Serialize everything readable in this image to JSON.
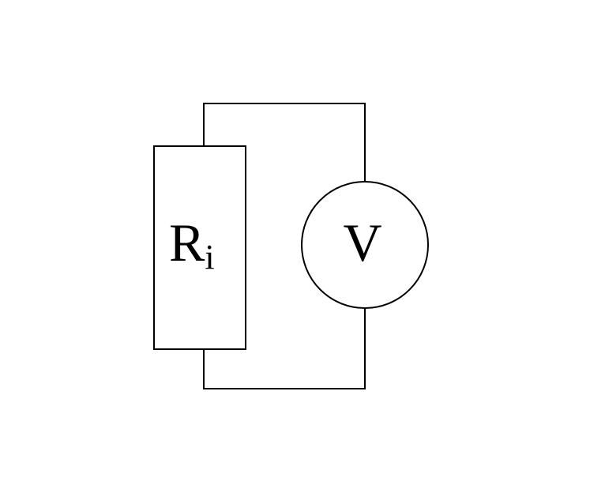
{
  "diagram": {
    "resistor": {
      "symbol": "R",
      "subscript": "i"
    },
    "voltmeter": {
      "symbol": "V"
    }
  },
  "colors": {
    "stroke": "#000000",
    "background": "#ffffff"
  }
}
